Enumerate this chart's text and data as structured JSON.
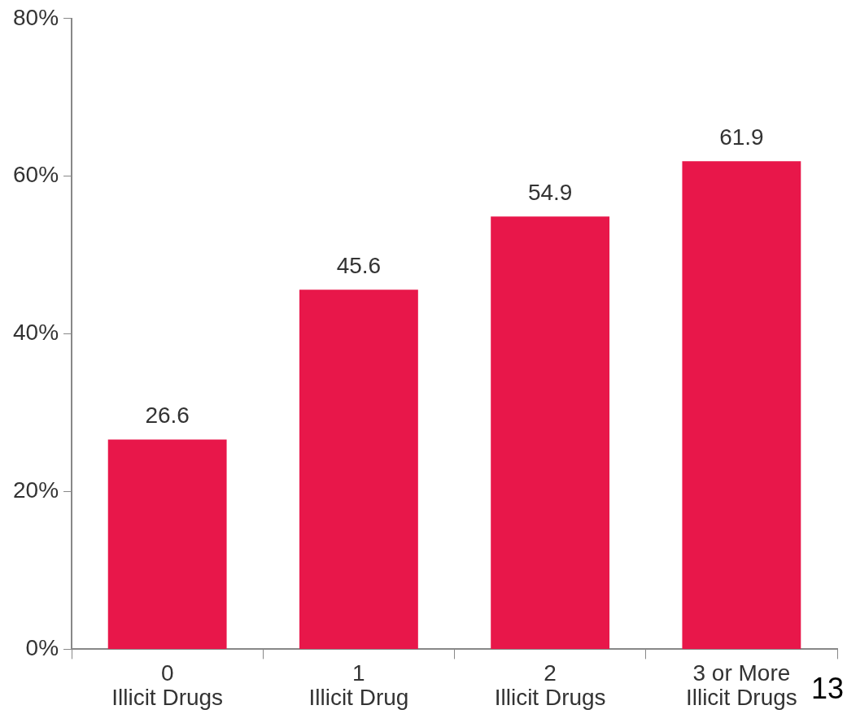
{
  "chart_data": {
    "type": "bar",
    "categories": [
      "0\nIllicit Drugs",
      "1\nIllicit Drug",
      "2\nIllicit Drugs",
      "3 or More\nIllicit Drugs"
    ],
    "values": [
      26.6,
      45.6,
      54.9,
      61.9
    ],
    "color": "#e8174a",
    "ylim": [
      0,
      80
    ],
    "yticks": [
      {
        "value": 0,
        "label": "0%"
      },
      {
        "value": 20,
        "label": "20%"
      },
      {
        "value": 40,
        "label": "40%"
      },
      {
        "value": 60,
        "label": "60%"
      },
      {
        "value": 80,
        "label": "80%"
      }
    ],
    "grid": false,
    "data_labels": true,
    "annotations": [
      "13"
    ]
  }
}
